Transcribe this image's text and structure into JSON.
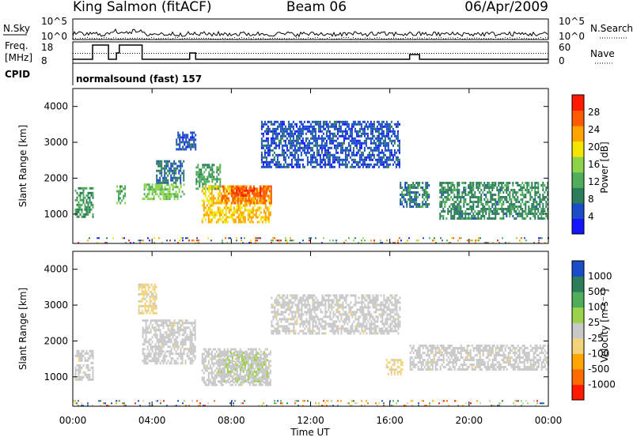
{
  "header": {
    "radar": "King Salmon (fitACF)",
    "beam": "Beam 06",
    "date": "06/Apr/2009"
  },
  "sky_panel": {
    "left_label": "N.Sky",
    "right_label": "N.Search",
    "left_ticks": [
      "10^5",
      "10^0"
    ],
    "right_ticks": [
      "10^5",
      "10^0"
    ]
  },
  "freq_panel": {
    "left_label": "Freq.",
    "unit": "[MHz]",
    "right_label": "Nave",
    "left_ticks": [
      "18",
      "8"
    ],
    "right_ticks": [
      "60",
      "0"
    ]
  },
  "cpid": {
    "label": "CPID",
    "text": "normalsound (fast) 157"
  },
  "colors": {
    "power": [
      "#1414ff",
      "#1a4cc8",
      "#2e7d5a",
      "#4fae5a",
      "#8dd34a",
      "#f2e500",
      "#ffa500",
      "#ff5a00",
      "#ff1a00"
    ],
    "velocity": [
      "#ff1a00",
      "#ff6a00",
      "#ffa500",
      "#f2d37a",
      "#c8c8c8",
      "#9ad24a",
      "#4fae5a",
      "#2e7d5a",
      "#1a4cc8"
    ]
  },
  "chart_data": [
    {
      "type": "heatmap",
      "name": "power",
      "ylabel": "Slant Range [km]",
      "ylim": [
        180,
        4500
      ],
      "yticks": [
        1000,
        2000,
        3000,
        4000
      ],
      "xlim_hours": [
        0,
        24
      ],
      "colorbar": {
        "label": "Power [dB]",
        "ticks": [
          "4",
          "8",
          "12",
          "16",
          "20",
          "24",
          "28"
        ],
        "range": [
          0,
          30
        ]
      },
      "echo_regions": [
        {
          "t0": 0.1,
          "t1": 1.0,
          "r0": 950,
          "r1": 1750,
          "value": 10
        },
        {
          "t0": 2.2,
          "t1": 2.6,
          "r0": 1300,
          "r1": 1800,
          "value": 12
        },
        {
          "t0": 3.5,
          "t1": 5.6,
          "r0": 1400,
          "r1": 1850,
          "value": 14
        },
        {
          "t0": 4.2,
          "t1": 5.6,
          "r0": 1900,
          "r1": 2500,
          "value": 7
        },
        {
          "t0": 5.2,
          "t1": 6.2,
          "r0": 2800,
          "r1": 3300,
          "value": 5
        },
        {
          "t0": 6.2,
          "t1": 7.4,
          "r0": 1700,
          "r1": 2400,
          "value": 11
        },
        {
          "t0": 6.5,
          "t1": 10.0,
          "r0": 800,
          "r1": 1800,
          "value": 20
        },
        {
          "t0": 7.5,
          "t1": 10.0,
          "r0": 1300,
          "r1": 1800,
          "value": 24
        },
        {
          "t0": 8.0,
          "t1": 9.5,
          "r0": 1500,
          "r1": 1750,
          "value": 27
        },
        {
          "t0": 9.5,
          "t1": 16.5,
          "r0": 2300,
          "r1": 3600,
          "value": 5
        },
        {
          "t0": 16.5,
          "t1": 18.0,
          "r0": 1200,
          "r1": 1900,
          "value": 8
        },
        {
          "t0": 18.5,
          "t1": 24.0,
          "r0": 900,
          "r1": 1900,
          "value": 9
        }
      ]
    },
    {
      "type": "heatmap",
      "name": "velocity",
      "ylabel": "Slant Range [km]",
      "xlabel": "Time UT",
      "ylim": [
        180,
        4500
      ],
      "yticks": [
        1000,
        2000,
        3000,
        4000
      ],
      "xticks": [
        "00:00",
        "04:00",
        "08:00",
        "12:00",
        "16:00",
        "20:00",
        "00:00"
      ],
      "xlim_hours": [
        0,
        24
      ],
      "colorbar": {
        "label": "Velocity [m s⁻¹]",
        "ticks": [
          "1000",
          "500",
          "100",
          "25",
          "-25",
          "-100",
          "-500",
          "-1000"
        ],
        "range": [
          -1000,
          1000
        ]
      },
      "echo_regions": [
        {
          "t0": 0.1,
          "t1": 1.0,
          "r0": 900,
          "r1": 1750,
          "value": -10
        },
        {
          "t0": 3.3,
          "t1": 4.2,
          "r0": 2800,
          "r1": 3600,
          "value": -200
        },
        {
          "t0": 3.5,
          "t1": 6.2,
          "r0": 1400,
          "r1": 2600,
          "value": -10
        },
        {
          "t0": 6.5,
          "t1": 10.0,
          "r0": 800,
          "r1": 1800,
          "value": -10
        },
        {
          "t0": 7.3,
          "t1": 9.8,
          "r0": 850,
          "r1": 1700,
          "value": 80
        },
        {
          "t0": 10.0,
          "t1": 16.5,
          "r0": 2200,
          "r1": 3300,
          "value": -10
        },
        {
          "t0": 15.8,
          "t1": 16.6,
          "r0": 1100,
          "r1": 1500,
          "value": -200
        },
        {
          "t0": 17.0,
          "t1": 24.0,
          "r0": 1200,
          "r1": 1900,
          "value": -10
        }
      ]
    }
  ]
}
